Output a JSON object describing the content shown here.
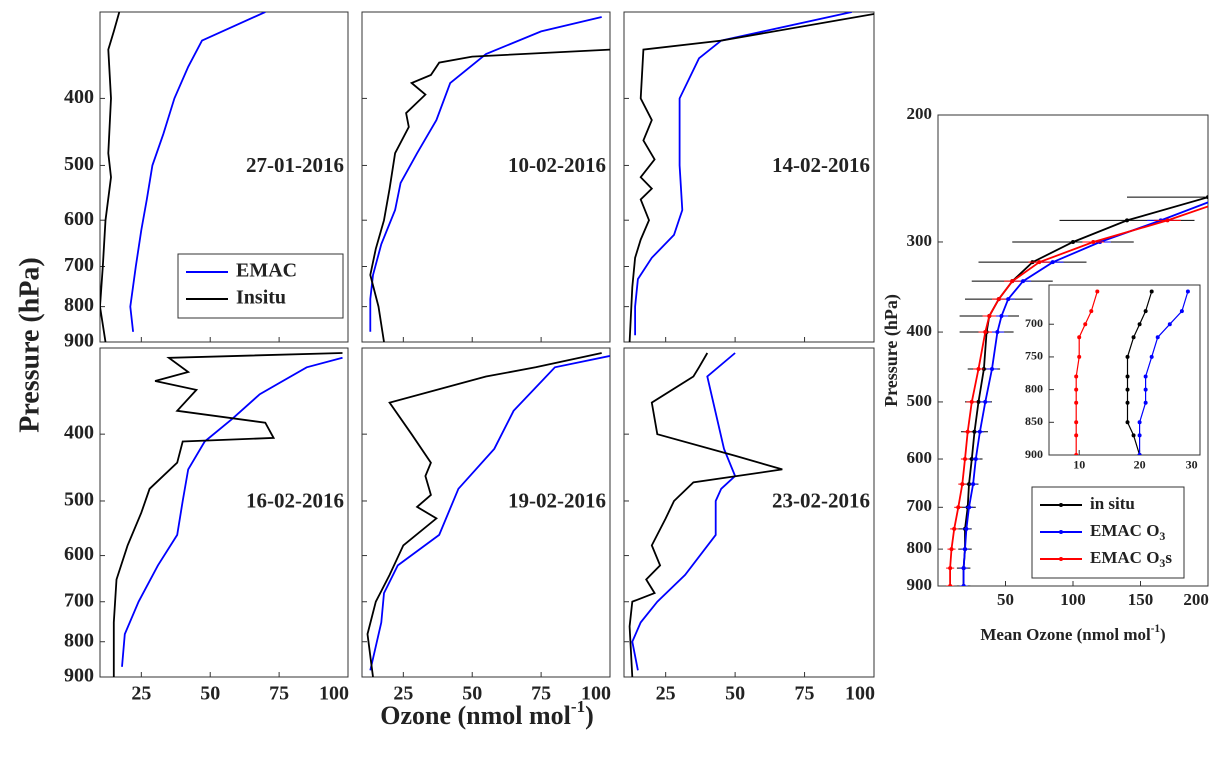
{
  "shared": {
    "ylabel": "Pressure (hPa)",
    "xlabel": [
      "Ozone (nmol mol",
      "-1",
      ")"
    ]
  },
  "chart_data": [
    {
      "type": "line",
      "annotation": "27-01-2016",
      "xlim": [
        10,
        100
      ],
      "ylim": [
        300,
        900
      ],
      "log_y": true,
      "xticks": [
        25,
        50,
        75,
        100
      ],
      "yticks": [
        400,
        500,
        600,
        700,
        800,
        900
      ],
      "show_xticklabels": false,
      "show_yticklabels": true,
      "legend": "lower right",
      "series": [
        {
          "name": "EMAC",
          "color": "#0000ff",
          "x": [
            70,
            47,
            42,
            37,
            33,
            29,
            27,
            25,
            23,
            21,
            22
          ],
          "values": [
            300,
            330,
            360,
            400,
            450,
            500,
            560,
            620,
            700,
            800,
            870
          ]
        },
        {
          "name": "Insitu",
          "color": "#000000",
          "x": [
            17,
            15,
            13,
            14,
            13,
            14,
            12,
            11,
            10,
            12
          ],
          "values": [
            300,
            320,
            340,
            400,
            480,
            520,
            600,
            700,
            800,
            900
          ]
        }
      ]
    },
    {
      "type": "line",
      "annotation": "10-02-2016",
      "xlim": [
        10,
        100
      ],
      "ylim": [
        300,
        900
      ],
      "log_y": true,
      "xticks": [
        25,
        50,
        75,
        100
      ],
      "yticks": [
        400,
        500,
        600,
        700,
        800,
        900
      ],
      "show_xticklabels": false,
      "show_yticklabels": false,
      "series": [
        {
          "color": "#0000ff",
          "x": [
            97,
            75,
            55,
            42,
            37,
            30,
            24,
            22,
            17,
            14,
            13,
            13
          ],
          "values": [
            305,
            320,
            345,
            380,
            430,
            480,
            530,
            580,
            650,
            720,
            780,
            870
          ]
        },
        {
          "color": "#000000",
          "x": [
            100,
            50,
            38,
            35,
            28,
            33,
            26,
            27,
            22,
            20,
            18,
            15,
            13,
            16,
            18
          ],
          "values": [
            340,
            348,
            355,
            370,
            380,
            395,
            420,
            440,
            480,
            540,
            600,
            660,
            720,
            800,
            900
          ]
        }
      ]
    },
    {
      "type": "line",
      "annotation": "14-02-2016",
      "xlim": [
        10,
        100
      ],
      "ylim": [
        300,
        900
      ],
      "log_y": true,
      "xticks": [
        25,
        50,
        75,
        100
      ],
      "yticks": [
        400,
        500,
        600,
        700,
        800,
        900
      ],
      "show_xticklabels": false,
      "show_yticklabels": false,
      "series": [
        {
          "color": "#0000ff",
          "x": [
            92,
            45,
            37,
            30,
            30,
            31,
            28,
            20,
            15,
            14,
            14
          ],
          "values": [
            300,
            330,
            350,
            400,
            500,
            580,
            630,
            680,
            730,
            800,
            880
          ]
        },
        {
          "color": "#000000",
          "x": [
            100,
            45,
            17,
            16,
            20,
            17,
            21,
            16,
            20,
            16,
            19,
            16,
            14,
            13,
            12
          ],
          "values": [
            302,
            330,
            340,
            400,
            430,
            460,
            490,
            520,
            540,
            560,
            600,
            640,
            680,
            750,
            900
          ]
        }
      ]
    },
    {
      "type": "line",
      "annotation": "16-02-2016",
      "xlim": [
        10,
        100
      ],
      "ylim": [
        300,
        900
      ],
      "log_y": true,
      "xticks": [
        25,
        50,
        75,
        100
      ],
      "yticks": [
        400,
        500,
        600,
        700,
        800,
        900
      ],
      "show_xticklabels": true,
      "show_yticklabels": true,
      "series": [
        {
          "color": "#0000ff",
          "x": [
            98,
            85,
            68,
            58,
            48,
            42,
            40,
            38,
            31,
            24,
            19,
            18
          ],
          "values": [
            310,
            320,
            350,
            380,
            410,
            450,
            500,
            560,
            620,
            700,
            780,
            870
          ]
        },
        {
          "color": "#000000",
          "x": [
            98,
            35,
            42,
            30,
            45,
            38,
            70,
            73,
            40,
            38,
            28,
            25,
            20,
            16,
            15,
            15,
            15
          ],
          "values": [
            305,
            310,
            325,
            335,
            345,
            370,
            385,
            405,
            410,
            440,
            480,
            520,
            580,
            650,
            750,
            850,
            900
          ]
        }
      ]
    },
    {
      "type": "line",
      "annotation": "19-02-2016",
      "xlim": [
        10,
        100
      ],
      "ylim": [
        300,
        900
      ],
      "log_y": true,
      "xticks": [
        25,
        50,
        75,
        100
      ],
      "yticks": [
        400,
        500,
        600,
        700,
        800,
        900
      ],
      "show_xticklabels": true,
      "show_yticklabels": false,
      "series": [
        {
          "color": "#0000ff",
          "x": [
            100,
            80,
            65,
            58,
            45,
            38,
            23,
            18,
            17,
            13
          ],
          "values": [
            308,
            320,
            370,
            420,
            480,
            560,
            620,
            680,
            750,
            880
          ]
        },
        {
          "color": "#000000",
          "x": [
            97,
            73,
            55,
            20,
            28,
            35,
            33,
            35,
            30,
            37,
            25,
            20,
            15,
            12,
            14
          ],
          "values": [
            305,
            320,
            330,
            360,
            400,
            440,
            460,
            490,
            510,
            530,
            580,
            640,
            700,
            780,
            900
          ]
        }
      ]
    },
    {
      "type": "line",
      "annotation": "23-02-2016",
      "xlim": [
        10,
        100
      ],
      "ylim": [
        300,
        900
      ],
      "log_y": true,
      "xticks": [
        25,
        50,
        75,
        100
      ],
      "yticks": [
        400,
        500,
        600,
        700,
        800,
        900
      ],
      "show_xticklabels": true,
      "show_yticklabels": false,
      "series": [
        {
          "color": "#0000ff",
          "x": [
            50,
            40,
            46,
            50,
            45,
            43,
            43,
            32,
            22,
            16,
            13,
            15
          ],
          "values": [
            305,
            330,
            420,
            460,
            480,
            500,
            560,
            640,
            700,
            750,
            800,
            880
          ]
        },
        {
          "color": "#000000",
          "x": [
            40,
            37,
            35,
            20,
            22,
            50,
            67,
            35,
            28,
            25,
            20,
            23,
            18,
            21,
            13,
            12,
            13
          ],
          "values": [
            305,
            320,
            330,
            360,
            400,
            430,
            450,
            470,
            500,
            530,
            580,
            620,
            650,
            680,
            700,
            760,
            900
          ]
        }
      ]
    },
    {
      "type": "line",
      "xlabel": [
        "Mean Ozone (nmol mol",
        "-1",
        ")"
      ],
      "ylabel": "Pressure (hPa)",
      "xlim": [
        0,
        200
      ],
      "ylim": [
        200,
        900
      ],
      "log_y": true,
      "xticks": [
        50,
        100,
        150,
        200
      ],
      "yticks": [
        200,
        300,
        400,
        500,
        600,
        700,
        800,
        900
      ],
      "show_xticklabels": true,
      "show_yticklabels": true,
      "legend": "lower right",
      "series": [
        {
          "name": [
            "in situ"
          ],
          "color": "#000000",
          "values": [
            260,
            280,
            300,
            320,
            340,
            360,
            380,
            400,
            450,
            500,
            550,
            600,
            650,
            700,
            750,
            800,
            850,
            900
          ],
          "x": [
            200,
            140,
            100,
            70,
            55,
            45,
            38,
            36,
            34,
            30,
            27,
            25,
            23,
            22,
            20,
            20,
            19,
            19
          ],
          "errors": [
            60,
            50,
            45,
            40,
            30,
            25,
            22,
            20,
            12,
            10,
            10,
            8,
            7,
            6,
            5,
            5,
            5,
            5
          ]
        },
        {
          "name": [
            "EMAC O",
            "3"
          ],
          "color": "#0000ff",
          "values": [
            260,
            280,
            300,
            320,
            340,
            360,
            380,
            400,
            450,
            500,
            550,
            600,
            650,
            700,
            750,
            800,
            850,
            900
          ],
          "x": [
            210,
            165,
            120,
            85,
            63,
            52,
            47,
            44,
            40,
            35,
            31,
            28,
            26,
            23,
            21,
            20,
            19,
            19
          ],
          "errors": [
            10,
            10,
            8,
            8,
            6,
            5,
            5,
            5,
            4,
            4,
            3,
            3,
            3,
            3,
            3,
            3,
            3,
            3
          ]
        },
        {
          "name": [
            "EMAC O",
            "3",
            "s"
          ],
          "color": "#ff0000",
          "values": [
            260,
            280,
            300,
            320,
            340,
            360,
            380,
            400,
            450,
            500,
            550,
            600,
            650,
            700,
            750,
            800,
            850,
            900
          ],
          "x": [
            220,
            170,
            115,
            75,
            55,
            45,
            38,
            35,
            30,
            25,
            22,
            20,
            18,
            15,
            12,
            10,
            9,
            9
          ],
          "errors": [
            10,
            10,
            8,
            8,
            6,
            5,
            5,
            5,
            4,
            4,
            3,
            3,
            3,
            3,
            3,
            3,
            3,
            3
          ]
        }
      ]
    },
    {
      "type": "line",
      "xlim": [
        5,
        30
      ],
      "ylim": [
        640,
        900
      ],
      "log_y": false,
      "xticks": [
        10,
        20,
        30
      ],
      "yticks": [
        700,
        750,
        800,
        850,
        900
      ],
      "show_xticklabels": true,
      "show_yticklabels": true,
      "series": [
        {
          "color": "#000000",
          "values": [
            650,
            680,
            700,
            720,
            750,
            780,
            800,
            820,
            850,
            870,
            900
          ],
          "x": [
            22,
            21,
            20,
            19,
            18,
            18,
            18,
            18,
            18,
            19,
            20
          ]
        },
        {
          "color": "#0000ff",
          "values": [
            650,
            680,
            700,
            720,
            750,
            780,
            800,
            820,
            850,
            870,
            900
          ],
          "x": [
            28,
            27,
            25,
            23,
            22,
            21,
            21,
            21,
            20,
            20,
            20
          ]
        },
        {
          "color": "#ff0000",
          "values": [
            650,
            680,
            700,
            720,
            750,
            780,
            800,
            820,
            850,
            870,
            900
          ],
          "x": [
            13,
            12,
            11,
            10,
            10,
            9.5,
            9.5,
            9.5,
            9.5,
            9.5,
            9.5
          ]
        }
      ]
    }
  ]
}
